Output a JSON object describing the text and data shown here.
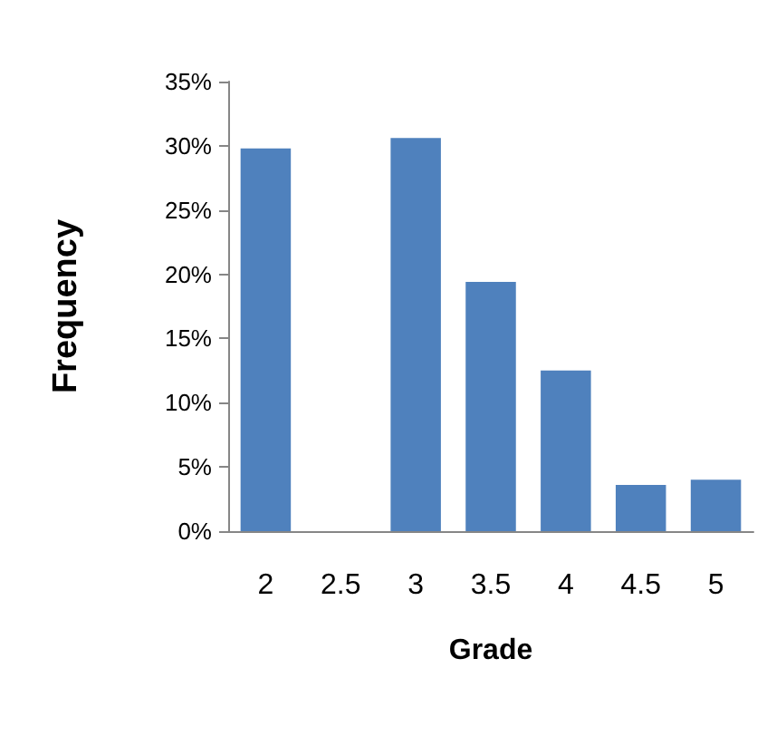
{
  "chart_data": {
    "type": "bar",
    "xlabel": "Grade",
    "ylabel": "Frequency",
    "categories": [
      "2",
      "2.5",
      "3",
      "3.5",
      "4",
      "4.5",
      "5"
    ],
    "values": [
      29.8,
      0,
      30.6,
      19.4,
      12.5,
      3.6,
      4.0
    ],
    "color": "#4f81bd",
    "ylim": [
      0,
      35
    ],
    "yticks": [
      {
        "value": 0,
        "label": "0%"
      },
      {
        "value": 5,
        "label": "5%"
      },
      {
        "value": 10,
        "label": "10%"
      },
      {
        "value": 15,
        "label": "15%"
      },
      {
        "value": 20,
        "label": "20%"
      },
      {
        "value": 25,
        "label": "25%"
      },
      {
        "value": 30,
        "label": "30%"
      },
      {
        "value": 35,
        "label": "35%"
      }
    ],
    "grid": false
  }
}
